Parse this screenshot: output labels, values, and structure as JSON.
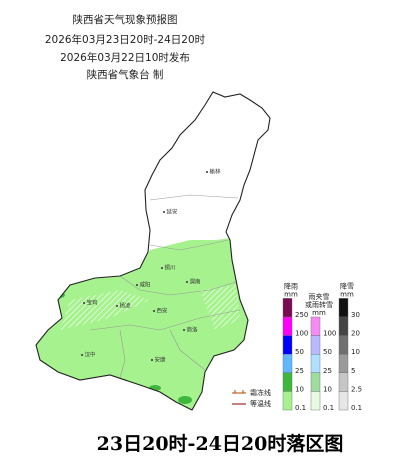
{
  "header": {
    "title": "陕西省天气现象预报图",
    "period": "2026年03月23日20时-24日20时",
    "issued": "2026年03月22日10时发布",
    "agency": "陕西省气象台 制"
  },
  "cities": [
    {
      "label": "榆林"
    },
    {
      "label": "延安"
    },
    {
      "label": "铜川"
    },
    {
      "label": "咸阳"
    },
    {
      "label": "渭南"
    },
    {
      "label": "宝鸡"
    },
    {
      "label": "杨凌"
    },
    {
      "label": "西安"
    },
    {
      "label": "商洛"
    },
    {
      "label": "汉中"
    },
    {
      "label": "安康"
    }
  ],
  "legend": [
    {
      "title": [
        "降雨",
        "mm"
      ],
      "levels": [
        250,
        100,
        50,
        25,
        10,
        0.1
      ],
      "colors": [
        "#7a0b52",
        "#ff00ff",
        "#0000ff",
        "#62b8ff",
        "#3db83d",
        "#a6f28f"
      ]
    },
    {
      "title": [
        "雨夹雪",
        "或雨转雪",
        "mm"
      ],
      "levels": [
        100,
        50,
        25,
        10,
        0.1
      ],
      "colors": [
        "#f48cf4",
        "#b9b9ff",
        "#b0e0ff",
        "#9edd9e",
        "#e8fae0"
      ]
    },
    {
      "title": [
        "降雪",
        "mm"
      ],
      "levels": [
        30,
        20,
        10,
        5,
        2.5,
        0.1
      ],
      "colors": [
        "#111111",
        "#444444",
        "#707070",
        "#9a9a9a",
        "#c6c6c6",
        "#e6e6e6"
      ]
    }
  ],
  "lines": [
    "霜冻线",
    "等温线"
  ],
  "footer": "23日20时-24日20时落区图"
}
